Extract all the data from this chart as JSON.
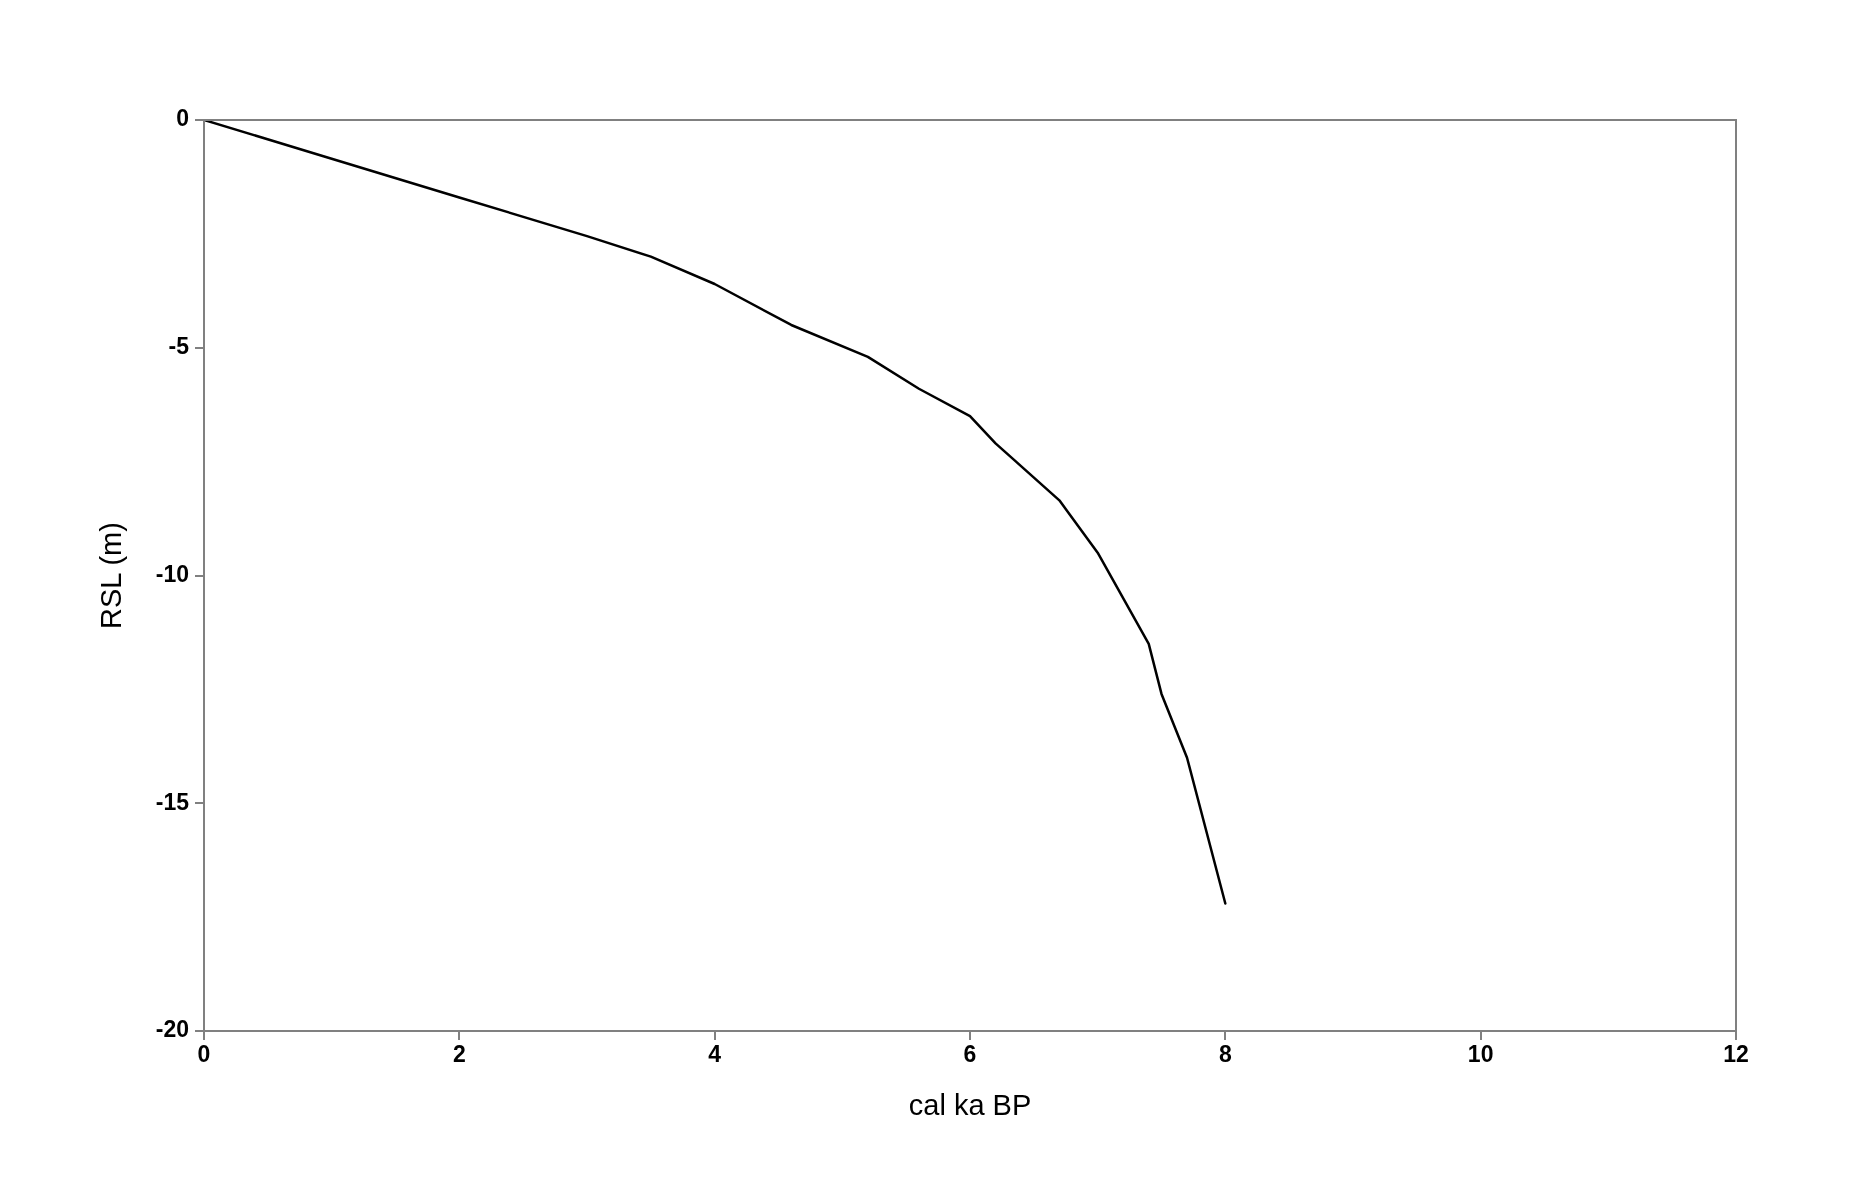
{
  "chart_data": {
    "type": "line",
    "xlabel": "cal ka BP",
    "ylabel": "RSL (m)",
    "x": [
      0,
      1,
      2,
      3,
      3.5,
      4,
      4.6,
      5.2,
      5.6,
      6,
      6.2,
      6.7,
      7,
      7.4,
      7.5,
      7.7,
      8
    ],
    "values": [
      0,
      -0.85,
      -1.7,
      -2.55,
      -3.0,
      -3.6,
      -4.5,
      -5.2,
      -5.9,
      -6.5,
      -7.1,
      -8.35,
      -9.5,
      -11.5,
      -12.6,
      -14,
      -17.2
    ],
    "color": "#000000",
    "xlim": [
      0,
      12
    ],
    "ylim": [
      -20,
      0
    ],
    "xticks": [
      0,
      2,
      4,
      6,
      8,
      10,
      12
    ],
    "yticks": [
      -20,
      -15,
      -10,
      -5,
      0
    ],
    "grid": false,
    "legend": false,
    "marker": "none",
    "line_style": "solid"
  }
}
